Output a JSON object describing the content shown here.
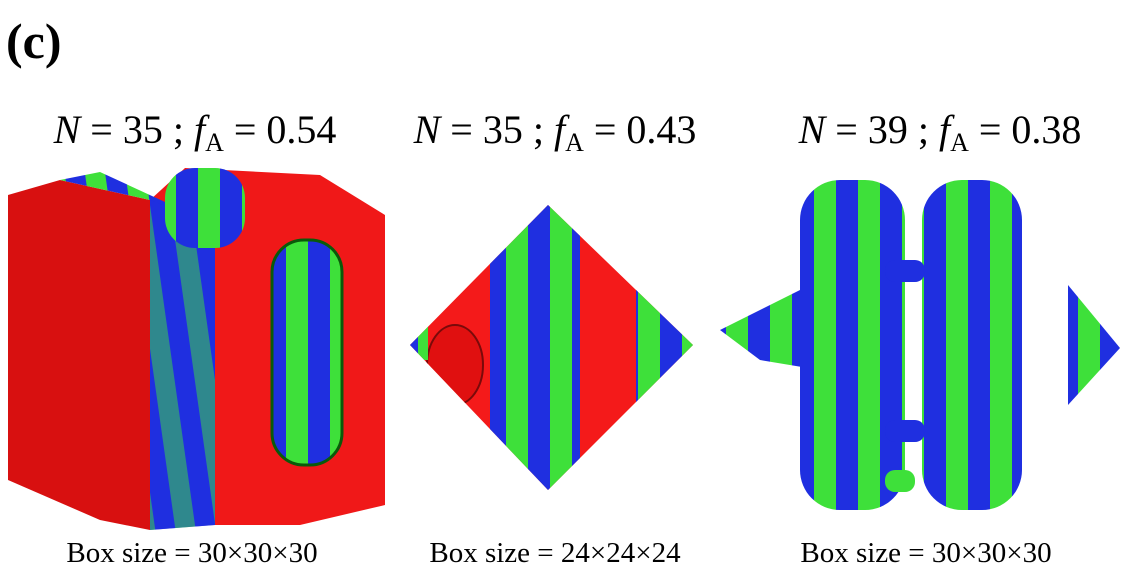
{
  "panel_label": "(c)",
  "panels": [
    {
      "title": [
        "N",
        " = 35 ; ",
        "f",
        "A",
        " = 0.54"
      ],
      "caption": "Box size = 30×30×30"
    },
    {
      "title": [
        "N",
        " = 35 ; ",
        "f",
        "A",
        " = 0.43"
      ],
      "caption": "Box size = 24×24×24"
    },
    {
      "title": [
        "N",
        " = 39 ; ",
        "f",
        "A",
        " = 0.38"
      ],
      "caption": "Box size = 30×30×30"
    }
  ]
}
